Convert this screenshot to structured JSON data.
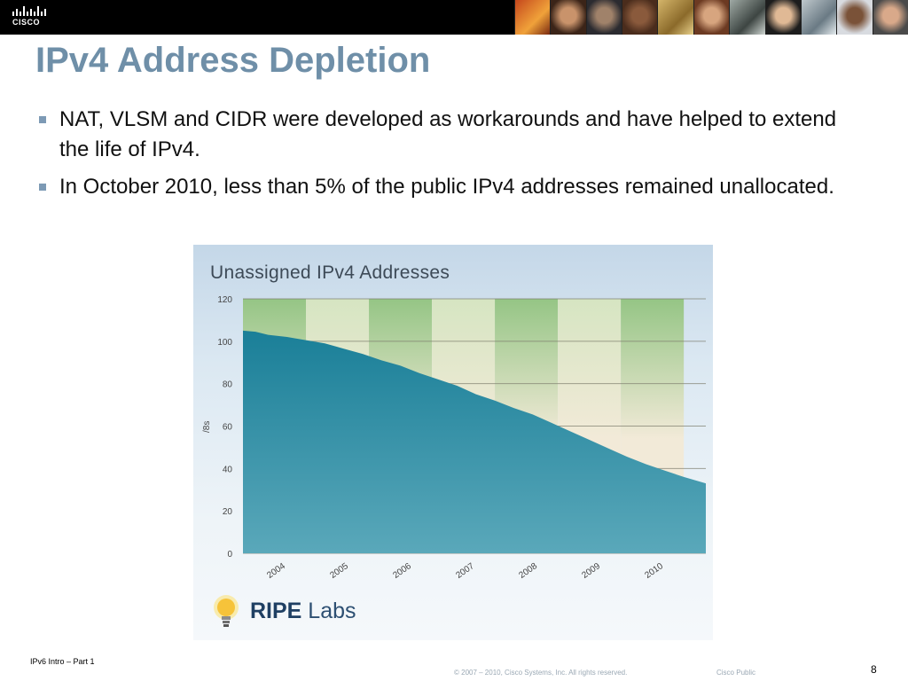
{
  "header": {
    "logo_text": "CISCO"
  },
  "slide": {
    "title": "IPv4 Address Depletion",
    "bullets": [
      "NAT, VLSM and CIDR were developed as workarounds and have helped to extend the life of IPv4.",
      "In October 2010, less than 5% of the public IPv4 addresses remained unallocated."
    ]
  },
  "chart_data": {
    "type": "area",
    "title": "Unassigned IPv4 Addresses",
    "ylabel": "/8s",
    "xlabel": "",
    "ylim": [
      0,
      120
    ],
    "yticks": [
      0,
      20,
      40,
      60,
      80,
      100,
      120
    ],
    "xlim": [
      2003.6,
      2010.95
    ],
    "xticks": [
      "2004",
      "2005",
      "2006",
      "2007",
      "2008",
      "2009",
      "2010"
    ],
    "grid": true,
    "series": [
      {
        "x": [
          2003.6,
          2003.8,
          2004.0,
          2004.3,
          2004.6,
          2004.9,
          2005.2,
          2005.5,
          2005.8,
          2006.1,
          2006.4,
          2006.7,
          2007.0,
          2007.3,
          2007.6,
          2007.9,
          2008.2,
          2008.5,
          2008.8,
          2009.1,
          2009.4,
          2009.7,
          2010.0,
          2010.3,
          2010.6,
          2010.95
        ],
        "values": [
          105,
          104.5,
          103,
          102,
          100.5,
          99,
          96.5,
          94,
          91,
          88.5,
          85,
          82,
          79,
          75,
          72,
          68.5,
          65.5,
          61.5,
          57.5,
          53.5,
          49.5,
          45.5,
          42,
          39,
          36,
          33
        ]
      }
    ]
  },
  "logo": {
    "ripe_bold": "RIPE",
    "ripe_light": " Labs"
  },
  "footer": {
    "left": "IPv6 Intro – Part 1",
    "copyright": "© 2007 – 2010, Cisco Systems, Inc. All rights reserved.",
    "classification": "Cisco Public",
    "page": "8"
  },
  "colors": {
    "title": "#6f8fa8",
    "area_top": "#1a7f98",
    "area_bottom": "#5aa8ba",
    "band_dark": "#95c585",
    "band_light": "#d6e5c2",
    "band_cream": "#f2ead8"
  }
}
